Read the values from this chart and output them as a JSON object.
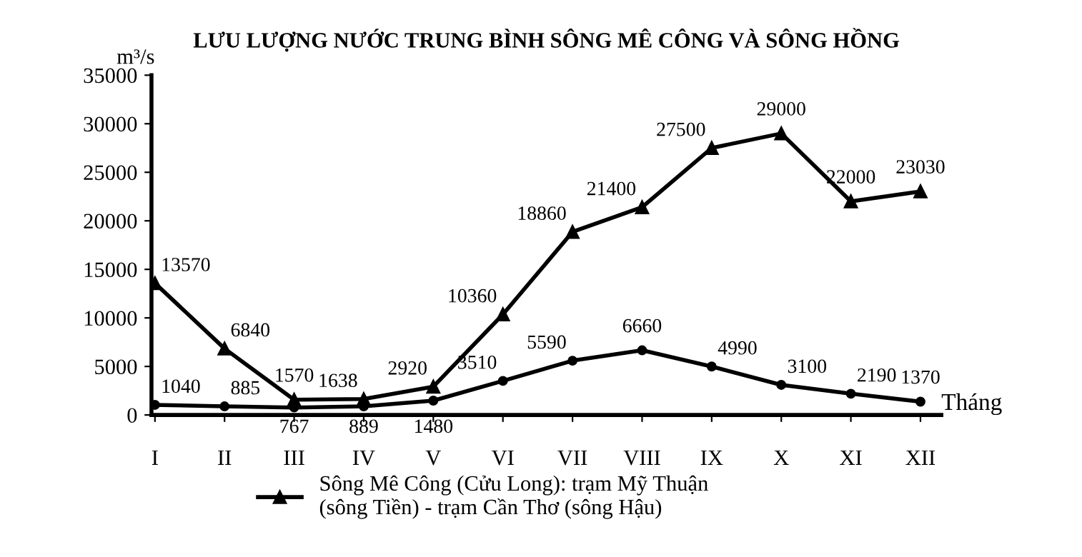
{
  "chart_data": {
    "type": "line",
    "title": "LƯU LƯỢNG NƯỚC TRUNG BÌNH SÔNG MÊ CÔNG VÀ SÔNG HỒNG",
    "ylabel": "m³/s",
    "xlabel": "Tháng",
    "categories": [
      "I",
      "II",
      "III",
      "IV",
      "V",
      "VI",
      "VII",
      "VIII",
      "IX",
      "X",
      "XI",
      "XII"
    ],
    "series": [
      {
        "name": "Sông Mê Công (Cửu Long): trạm Mỹ Thuận\n(sông Tiền) - trạm Cần Thơ (sông Hậu)",
        "color": "#000000",
        "marker": "triangle",
        "values": [
          13570,
          6840,
          1570,
          1638,
          2920,
          10360,
          18860,
          21400,
          27500,
          29000,
          22000,
          23030
        ]
      },
      {
        "color": "#000000",
        "marker": "circle",
        "values": [
          1040,
          885,
          767,
          889,
          1480,
          3510,
          5590,
          6660,
          4990,
          3100,
          2190,
          1370
        ]
      }
    ],
    "ylim": [
      0,
      35000
    ],
    "yticks": [
      0,
      5000,
      10000,
      15000,
      20000,
      25000,
      30000,
      35000
    ],
    "data_labels": true,
    "grid": false,
    "legend": "bottom",
    "line_style": "solid"
  }
}
